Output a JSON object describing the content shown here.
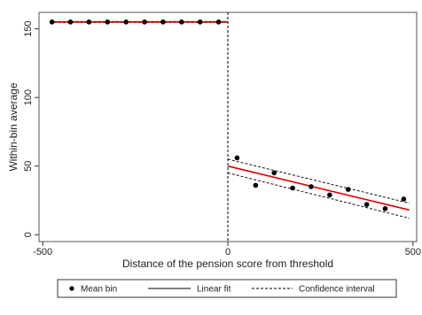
{
  "chart_data": {
    "type": "scatter",
    "title": "",
    "xlabel": "Distance of the pension score from threshold",
    "ylabel": "Within-bin average",
    "xlim": [
      -510,
      510
    ],
    "ylim": [
      -5,
      162
    ],
    "x_ticks": [
      -500,
      0,
      500
    ],
    "x_tick_labels": [
      "-500",
      "0",
      "500"
    ],
    "y_ticks": [
      0,
      50,
      100,
      150
    ],
    "y_tick_labels": [
      "0",
      "50",
      "100",
      "150"
    ],
    "grid": false,
    "threshold": 0,
    "legend": {
      "placement": "bottom",
      "entries": [
        {
          "label": "Mean bin",
          "style": "marker"
        },
        {
          "label": "Linear fit",
          "style": "solid"
        },
        {
          "label": "Confidence interval",
          "style": "dashed"
        }
      ]
    },
    "mean_bins": {
      "x": [
        -475,
        -425,
        -375,
        -325,
        -275,
        -225,
        -175,
        -125,
        -75,
        -25,
        25,
        75,
        125,
        175,
        225,
        275,
        325,
        375,
        425,
        475
      ],
      "y": [
        155,
        155,
        155,
        155,
        155,
        155,
        155,
        155,
        155,
        155,
        56,
        36,
        45,
        34,
        35,
        29,
        33,
        22,
        19,
        26
      ]
    },
    "left_fit": {
      "x": [
        -470,
        0
      ],
      "y": [
        155,
        155
      ],
      "ci_lower": [
        154.6,
        154.6
      ],
      "ci_upper": [
        155.4,
        155.4
      ],
      "fit_color": "#d40000",
      "ci_color": "#2a8a2a"
    },
    "right_fit": {
      "x": [
        0,
        490
      ],
      "y": [
        50,
        18
      ],
      "ci_lower": [
        45,
        12
      ],
      "ci_upper": [
        55,
        23
      ],
      "fit_color": "#e00000",
      "ci_color": "#111111"
    }
  }
}
